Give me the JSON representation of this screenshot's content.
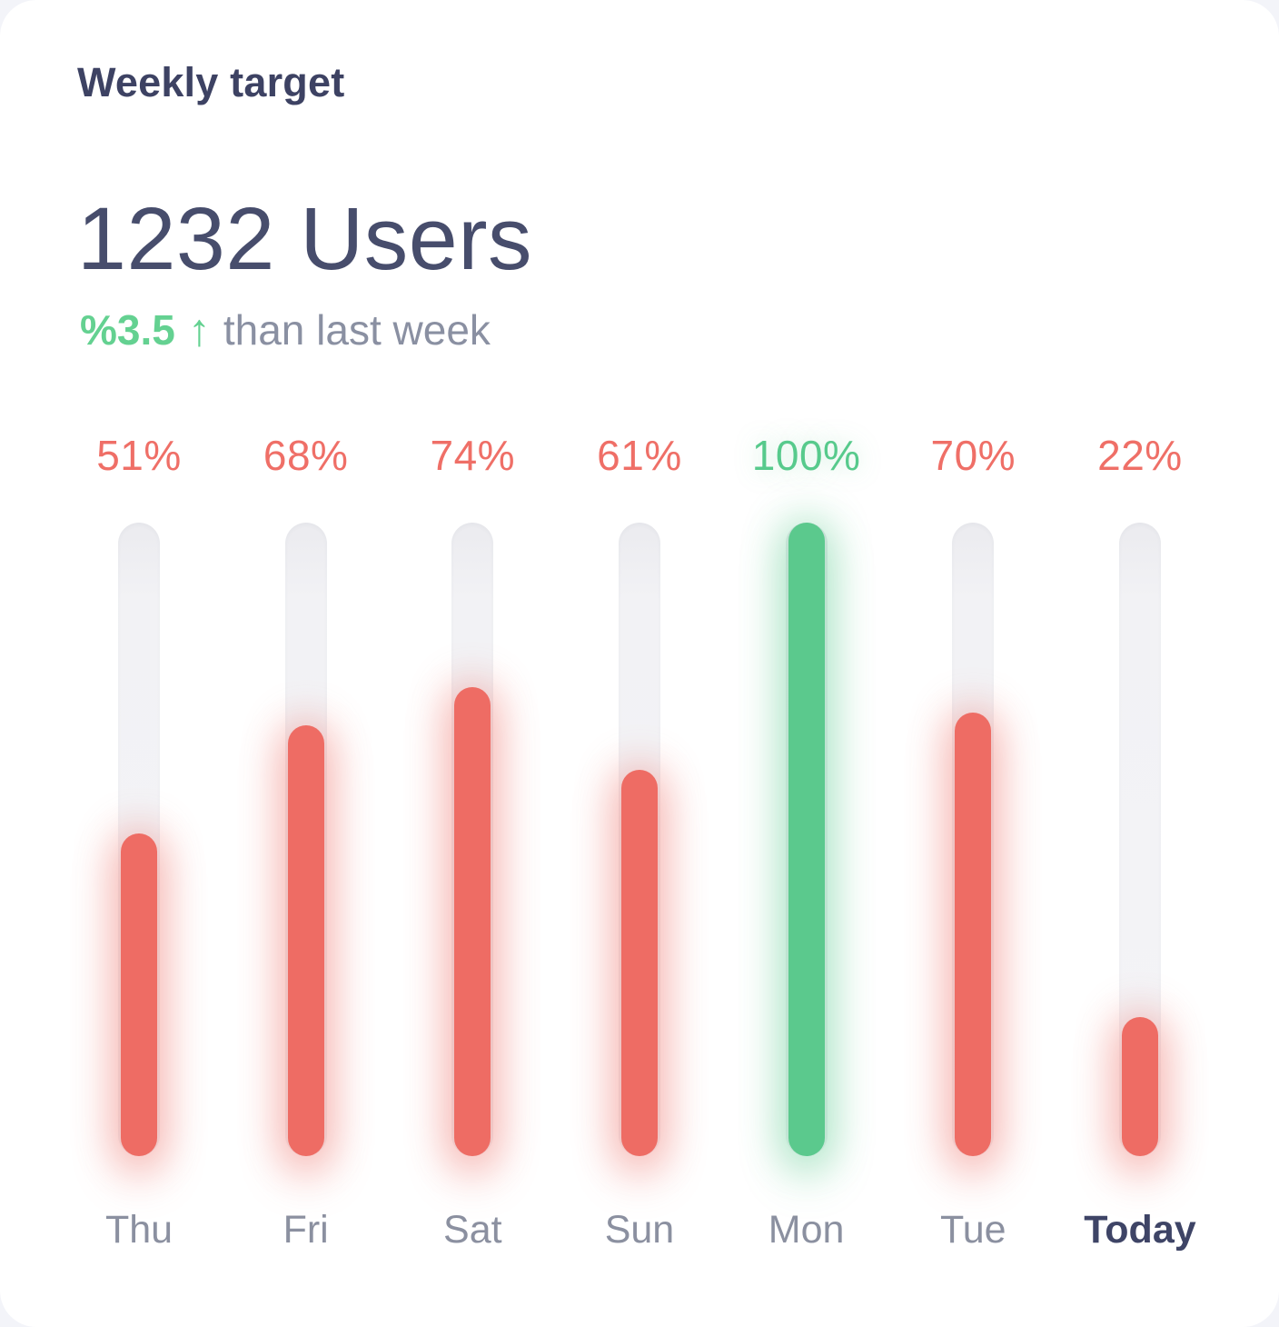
{
  "header": {
    "title": "Weekly target"
  },
  "summary": {
    "value": "1232 Users",
    "delta": "%3.5",
    "delta_arrow": "↑",
    "delta_note": "than last week"
  },
  "chart_data": {
    "type": "bar",
    "title": "Weekly target",
    "categories": [
      "Thu",
      "Fri",
      "Sat",
      "Sun",
      "Mon",
      "Tue",
      "Today"
    ],
    "values": [
      51,
      68,
      74,
      61,
      100,
      70,
      22
    ],
    "unit": "%",
    "ylim": [
      0,
      100
    ],
    "target_pct": 100,
    "highlight_category": "Today",
    "grid": false,
    "legend": false,
    "colors": {
      "below_target_fill": "#ee6c64",
      "on_target_fill": "#5bc98d",
      "below_target_label": "#ef6f67",
      "on_target_label": "#57ca8c",
      "track": "#f2f2f5",
      "day_label": "#8b90a0",
      "today_label": "#3e4466"
    }
  },
  "colors": {
    "title": "#3d4263",
    "value_text": "#474d6c",
    "delta_green": "#64d191",
    "note_gray": "#8a90a2",
    "card_bg": "#ffffff"
  }
}
